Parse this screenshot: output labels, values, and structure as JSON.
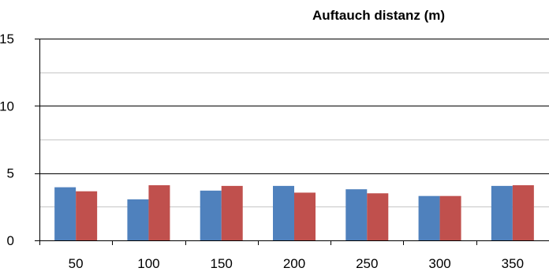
{
  "chart_data": {
    "type": "bar",
    "title": "Auftauch distanz (m)",
    "xlabel": "",
    "ylabel": "",
    "categories": [
      "50",
      "100",
      "150",
      "200",
      "250",
      "300",
      "350"
    ],
    "series": [
      {
        "values": [
          3.95,
          3.05,
          3.7,
          4.05,
          3.8,
          3.3,
          4.05
        ],
        "color": "#4f81bd"
      },
      {
        "values": [
          3.65,
          4.1,
          4.05,
          3.55,
          3.5,
          3.3,
          4.1
        ],
        "color": "#c0504d"
      }
    ],
    "ylim": [
      0,
      15
    ],
    "major_ticks": [
      0,
      5,
      10,
      15
    ],
    "minor_gridlines": [
      2.5,
      7.5,
      12.5
    ],
    "grid": true,
    "legend": "none"
  }
}
